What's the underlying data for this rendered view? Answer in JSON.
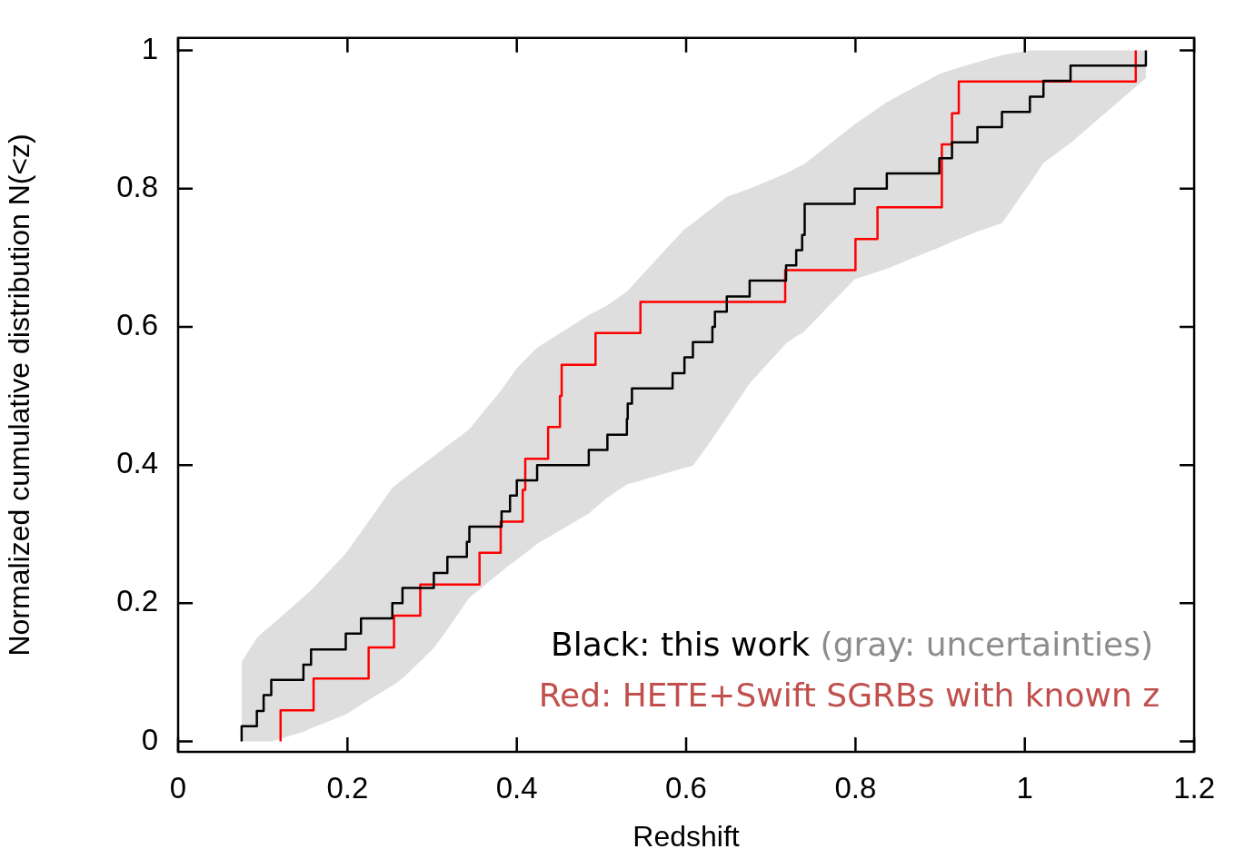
{
  "chart_data": {
    "type": "step",
    "xlabel": "Redshift",
    "ylabel": "Normalized cumulative distribution N(<z)",
    "xlim": [
      0,
      1.2
    ],
    "ylim": [
      -0.015,
      1.018
    ],
    "xticks": [
      0,
      0.2,
      0.4,
      0.6,
      0.8,
      1,
      1.2
    ],
    "yticks": [
      0,
      0.2,
      0.4,
      0.6,
      0.8,
      1
    ],
    "grid": false,
    "legend": false,
    "annotations": [
      "Black: this work",
      "(gray: uncertainties)",
      "Red: HETE+Swift SGRBs with known z"
    ],
    "series": [
      {
        "color": "#000000",
        "x": [
          0.075,
          0.075,
          0.093,
          0.101,
          0.11,
          0.148,
          0.157,
          0.198,
          0.216,
          0.253,
          0.265,
          0.302,
          0.318,
          0.341,
          0.344,
          0.382,
          0.392,
          0.4,
          0.424,
          0.485,
          0.507,
          0.53,
          0.531,
          0.536,
          0.584,
          0.598,
          0.608,
          0.631,
          0.634,
          0.648,
          0.675,
          0.718,
          0.73,
          0.737,
          0.74,
          0.74,
          0.799,
          0.837,
          0.899,
          0.914,
          0.944,
          0.973,
          1.006,
          1.022,
          1.054,
          1.143
        ],
        "values": [
          0,
          0.022,
          0.044,
          0.067,
          0.089,
          0.111,
          0.133,
          0.156,
          0.178,
          0.2,
          0.222,
          0.244,
          0.267,
          0.289,
          0.311,
          0.333,
          0.356,
          0.378,
          0.4,
          0.422,
          0.444,
          0.467,
          0.489,
          0.511,
          0.533,
          0.556,
          0.578,
          0.6,
          0.622,
          0.644,
          0.667,
          0.689,
          0.711,
          0.733,
          0.756,
          0.778,
          0.8,
          0.822,
          0.844,
          0.867,
          0.889,
          0.911,
          0.933,
          0.956,
          0.978,
          1
        ],
        "lower": [
          0,
          0,
          0,
          0,
          0,
          0.014,
          0.019,
          0.039,
          0.053,
          0.081,
          0.091,
          0.135,
          0.162,
          0.203,
          0.208,
          0.246,
          0.256,
          0.263,
          0.286,
          0.33,
          0.353,
          0.372,
          0.373,
          0.374,
          0.391,
          0.396,
          0.399,
          0.438,
          0.444,
          0.469,
          0.518,
          0.576,
          0.586,
          0.591,
          0.594,
          0.594,
          0.669,
          0.684,
          0.715,
          0.723,
          0.738,
          0.75,
          0.808,
          0.837,
          0.866,
          0.96
        ],
        "upper": [
          0.115,
          0.115,
          0.15,
          0.159,
          0.168,
          0.209,
          0.219,
          0.272,
          0.303,
          0.367,
          0.379,
          0.413,
          0.428,
          0.449,
          0.452,
          0.509,
          0.526,
          0.54,
          0.57,
          0.617,
          0.631,
          0.651,
          0.652,
          0.659,
          0.723,
          0.741,
          0.75,
          0.772,
          0.775,
          0.788,
          0.8,
          0.822,
          0.83,
          0.834,
          0.836,
          0.836,
          0.893,
          0.925,
          0.966,
          0.972,
          0.983,
          0.993,
          1,
          1,
          1,
          1
        ]
      },
      {
        "color": "#ff0000",
        "x": [
          0.121,
          0.121,
          0.16,
          0.225,
          0.255,
          0.286,
          0.356,
          0.381,
          0.407,
          0.41,
          0.437,
          0.451,
          0.453,
          0.493,
          0.546,
          0.717,
          0.8,
          0.826,
          0.902,
          0.902,
          0.914,
          0.922,
          1.131
        ],
        "values": [
          0,
          0.045,
          0.091,
          0.136,
          0.182,
          0.227,
          0.273,
          0.318,
          0.364,
          0.409,
          0.455,
          0.5,
          0.545,
          0.591,
          0.636,
          0.682,
          0.727,
          0.773,
          0.818,
          0.864,
          0.909,
          0.955,
          1
        ]
      }
    ]
  }
}
